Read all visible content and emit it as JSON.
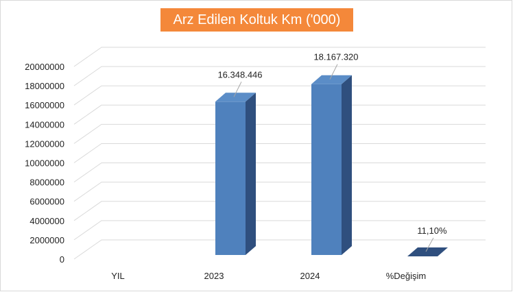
{
  "chart_data": {
    "type": "bar",
    "title": "Arz Edilen Koltuk Km ('000)",
    "categories": [
      "YIL",
      "2023",
      "2024",
      "%Değişim"
    ],
    "values": [
      0,
      16348446,
      18167320,
      0.111
    ],
    "data_labels": [
      "",
      "16.348.446",
      "18.167.320",
      "11,10%"
    ],
    "y_ticks": [
      "0",
      "2000000",
      "4000000",
      "6000000",
      "8000000",
      "10000000",
      "12000000",
      "14000000",
      "16000000",
      "18000000",
      "20000000"
    ],
    "ylim": [
      0,
      20000000
    ],
    "grid": true,
    "three_d": true,
    "colors": {
      "bar_front": "#4f81bd",
      "bar_side": "#2f4f7e",
      "bar_top": "#5b8dc7",
      "grid": "#d9d9d9",
      "title_bg": "#f4883a"
    }
  }
}
